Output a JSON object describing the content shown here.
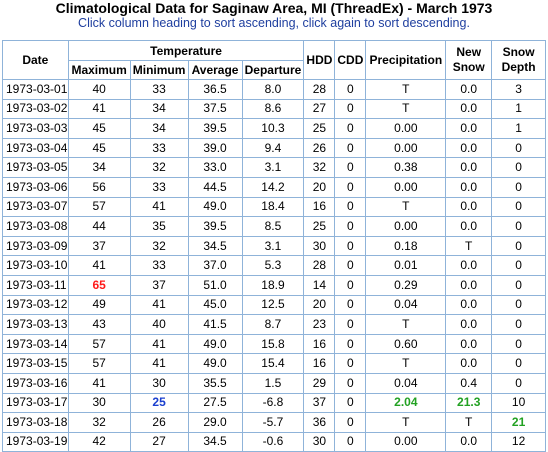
{
  "page": {
    "title": "Climatological Data for Saginaw Area, MI (ThreadEx) - March 1973",
    "subtitle": "Click column heading to sort ascending, click again to sort descending."
  },
  "table": {
    "headers": {
      "date": "Date",
      "temperature_group": "Temperature",
      "maximum": "Maximum",
      "minimum": "Minimum",
      "average": "Average",
      "departure": "Departure",
      "hdd": "HDD",
      "cdd": "CDD",
      "precipitation": "Precipitation",
      "new_snow": "New Snow",
      "snow_depth": "Snow Depth"
    },
    "highlight_colors": {
      "red": "#ff1a1a",
      "blue": "#1a3fcf",
      "green": "#22a122"
    },
    "rows": [
      {
        "date": "1973-03-01",
        "max": "40",
        "min": "33",
        "avg": "36.5",
        "dep": "8.0",
        "hdd": "28",
        "cdd": "0",
        "precip": "T",
        "newsnow": "0.0",
        "depth": "3"
      },
      {
        "date": "1973-03-02",
        "max": "41",
        "min": "34",
        "avg": "37.5",
        "dep": "8.6",
        "hdd": "27",
        "cdd": "0",
        "precip": "T",
        "newsnow": "0.0",
        "depth": "1"
      },
      {
        "date": "1973-03-03",
        "max": "45",
        "min": "34",
        "avg": "39.5",
        "dep": "10.3",
        "hdd": "25",
        "cdd": "0",
        "precip": "0.00",
        "newsnow": "0.0",
        "depth": "1"
      },
      {
        "date": "1973-03-04",
        "max": "45",
        "min": "33",
        "avg": "39.0",
        "dep": "9.4",
        "hdd": "26",
        "cdd": "0",
        "precip": "0.00",
        "newsnow": "0.0",
        "depth": "0"
      },
      {
        "date": "1973-03-05",
        "max": "34",
        "min": "32",
        "avg": "33.0",
        "dep": "3.1",
        "hdd": "32",
        "cdd": "0",
        "precip": "0.38",
        "newsnow": "0.0",
        "depth": "0"
      },
      {
        "date": "1973-03-06",
        "max": "56",
        "min": "33",
        "avg": "44.5",
        "dep": "14.2",
        "hdd": "20",
        "cdd": "0",
        "precip": "0.00",
        "newsnow": "0.0",
        "depth": "0"
      },
      {
        "date": "1973-03-07",
        "max": "57",
        "min": "41",
        "avg": "49.0",
        "dep": "18.4",
        "hdd": "16",
        "cdd": "0",
        "precip": "T",
        "newsnow": "0.0",
        "depth": "0"
      },
      {
        "date": "1973-03-08",
        "max": "44",
        "min": "35",
        "avg": "39.5",
        "dep": "8.5",
        "hdd": "25",
        "cdd": "0",
        "precip": "0.00",
        "newsnow": "0.0",
        "depth": "0"
      },
      {
        "date": "1973-03-09",
        "max": "37",
        "min": "32",
        "avg": "34.5",
        "dep": "3.1",
        "hdd": "30",
        "cdd": "0",
        "precip": "0.18",
        "newsnow": "T",
        "depth": "0"
      },
      {
        "date": "1973-03-10",
        "max": "41",
        "min": "33",
        "avg": "37.0",
        "dep": "5.3",
        "hdd": "28",
        "cdd": "0",
        "precip": "0.01",
        "newsnow": "0.0",
        "depth": "0"
      },
      {
        "date": "1973-03-11",
        "max": "65",
        "min": "37",
        "avg": "51.0",
        "dep": "18.9",
        "hdd": "14",
        "cdd": "0",
        "precip": "0.29",
        "newsnow": "0.0",
        "depth": "0",
        "max_hl": "red"
      },
      {
        "date": "1973-03-12",
        "max": "49",
        "min": "41",
        "avg": "45.0",
        "dep": "12.5",
        "hdd": "20",
        "cdd": "0",
        "precip": "0.04",
        "newsnow": "0.0",
        "depth": "0"
      },
      {
        "date": "1973-03-13",
        "max": "43",
        "min": "40",
        "avg": "41.5",
        "dep": "8.7",
        "hdd": "23",
        "cdd": "0",
        "precip": "T",
        "newsnow": "0.0",
        "depth": "0"
      },
      {
        "date": "1973-03-14",
        "max": "57",
        "min": "41",
        "avg": "49.0",
        "dep": "15.8",
        "hdd": "16",
        "cdd": "0",
        "precip": "0.60",
        "newsnow": "0.0",
        "depth": "0"
      },
      {
        "date": "1973-03-15",
        "max": "57",
        "min": "41",
        "avg": "49.0",
        "dep": "15.4",
        "hdd": "16",
        "cdd": "0",
        "precip": "T",
        "newsnow": "0.0",
        "depth": "0"
      },
      {
        "date": "1973-03-16",
        "max": "41",
        "min": "30",
        "avg": "35.5",
        "dep": "1.5",
        "hdd": "29",
        "cdd": "0",
        "precip": "0.04",
        "newsnow": "0.4",
        "depth": "0"
      },
      {
        "date": "1973-03-17",
        "max": "30",
        "min": "25",
        "avg": "27.5",
        "dep": "-6.8",
        "hdd": "37",
        "cdd": "0",
        "precip": "2.04",
        "newsnow": "21.3",
        "depth": "10",
        "min_hl": "blue",
        "precip_hl": "green",
        "newsnow_hl": "green"
      },
      {
        "date": "1973-03-18",
        "max": "32",
        "min": "26",
        "avg": "29.0",
        "dep": "-5.7",
        "hdd": "36",
        "cdd": "0",
        "precip": "T",
        "newsnow": "T",
        "depth": "21",
        "depth_hl": "green"
      },
      {
        "date": "1973-03-19",
        "max": "42",
        "min": "27",
        "avg": "34.5",
        "dep": "-0.6",
        "hdd": "30",
        "cdd": "0",
        "precip": "0.00",
        "newsnow": "0.0",
        "depth": "12"
      }
    ]
  }
}
